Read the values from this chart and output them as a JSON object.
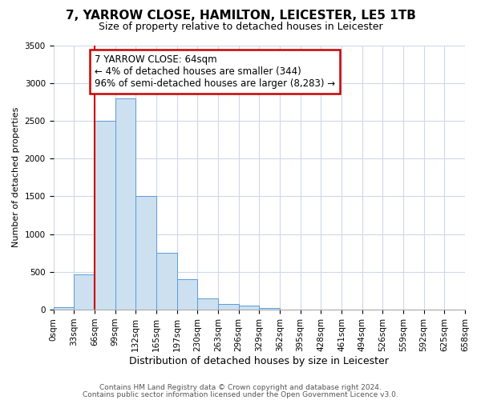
{
  "title": "7, YARROW CLOSE, HAMILTON, LEICESTER, LE5 1TB",
  "subtitle": "Size of property relative to detached houses in Leicester",
  "xlabel": "Distribution of detached houses by size in Leicester",
  "ylabel": "Number of detached properties",
  "footnote1": "Contains HM Land Registry data © Crown copyright and database right 2024.",
  "footnote2": "Contains public sector information licensed under the Open Government Licence v3.0.",
  "bin_labels": [
    "0sqm",
    "33sqm",
    "66sqm",
    "99sqm",
    "132sqm",
    "165sqm",
    "197sqm",
    "230sqm",
    "263sqm",
    "296sqm",
    "329sqm",
    "362sqm",
    "395sqm",
    "428sqm",
    "461sqm",
    "494sqm",
    "526sqm",
    "559sqm",
    "592sqm",
    "625sqm",
    "658sqm"
  ],
  "bar_values": [
    30,
    470,
    2500,
    2800,
    1500,
    750,
    400,
    150,
    80,
    50,
    20,
    0,
    0,
    0,
    0,
    0,
    0,
    0,
    0,
    0
  ],
  "bar_color": "#cce0f0",
  "bar_edge_color": "#5b9bd5",
  "ylim": [
    0,
    3500
  ],
  "yticks": [
    0,
    500,
    1000,
    1500,
    2000,
    2500,
    3000,
    3500
  ],
  "annotation_title": "7 YARROW CLOSE: 64sqm",
  "annotation_line1": "← 4% of detached houses are smaller (344)",
  "annotation_line2": "96% of semi-detached houses are larger (8,283) →",
  "marker_bin_index": 2,
  "annotation_box_color": "#ffffff",
  "annotation_border_color": "#cc0000",
  "marker_line_color": "#cc0000",
  "background_color": "#ffffff",
  "grid_color": "#d0d8e8",
  "title_fontsize": 11,
  "subtitle_fontsize": 9,
  "annotation_fontsize": 8.5,
  "axis_label_fontsize": 9,
  "ylabel_fontsize": 8,
  "tick_fontsize": 7.5,
  "footnote_fontsize": 6.5
}
